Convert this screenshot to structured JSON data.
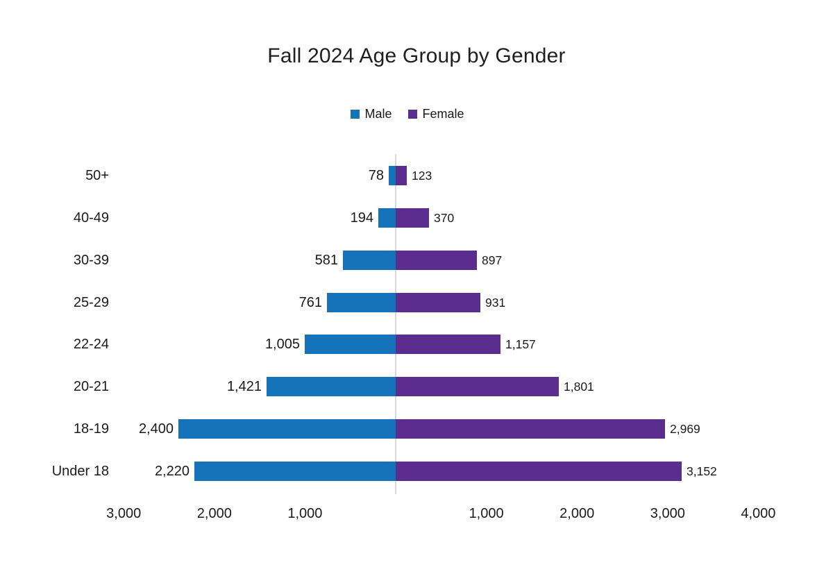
{
  "page": {
    "background_color": "#ffffff",
    "text_color": "#1a1a1a"
  },
  "chart_data": {
    "type": "bar",
    "variant": "population-pyramid",
    "orientation": "horizontal",
    "title": "Fall 2024 Age Group by Gender",
    "categories": [
      "50+",
      "40-49",
      "30-39",
      "25-29",
      "22-24",
      "20-21",
      "18-19",
      "Under 18"
    ],
    "series": [
      {
        "name": "Male",
        "color": "#1573b9",
        "side": "left",
        "values": [
          78,
          194,
          581,
          761,
          1005,
          1421,
          2400,
          2220
        ],
        "value_labels": [
          "78",
          "194",
          "581",
          "761",
          "1,005",
          "1,421",
          "2,400",
          "2,220"
        ]
      },
      {
        "name": "Female",
        "color": "#5b2d8f",
        "side": "right",
        "values": [
          123,
          370,
          897,
          931,
          1157,
          1801,
          2969,
          3152
        ],
        "value_labels": [
          "123",
          "370",
          "897",
          "931",
          "1,157",
          "1,801",
          "2,969",
          "3,152"
        ]
      }
    ],
    "x_axis": {
      "range": [
        -3000,
        4000
      ],
      "ticks": [
        {
          "value": -3000,
          "label": "3,000"
        },
        {
          "value": -2000,
          "label": "2,000"
        },
        {
          "value": -1000,
          "label": "1,000"
        },
        {
          "value": 0,
          "label": ""
        },
        {
          "value": 1000,
          "label": "1,000"
        },
        {
          "value": 2000,
          "label": "2,000"
        },
        {
          "value": 3000,
          "label": "3,000"
        },
        {
          "value": 4000,
          "label": "4,000"
        }
      ]
    },
    "legend": {
      "position": "top-center",
      "items": [
        "Male",
        "Female"
      ]
    },
    "grid": {
      "vertical_center_line": true,
      "gridline_color": "#d9d9d9"
    }
  }
}
